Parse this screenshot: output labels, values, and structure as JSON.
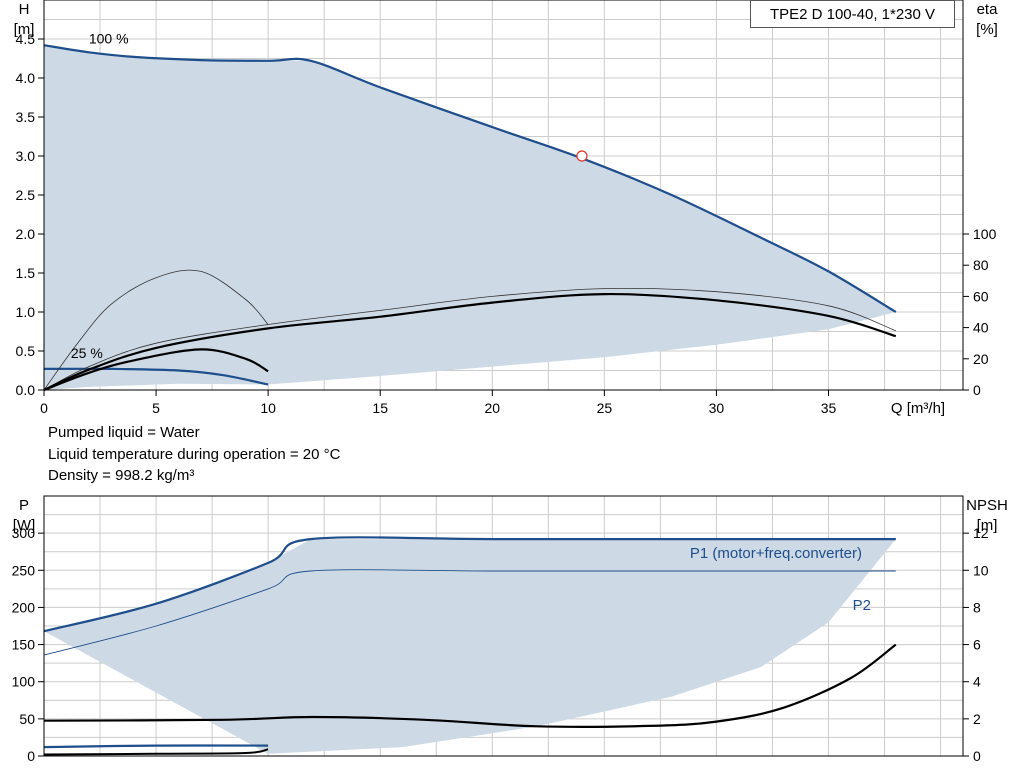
{
  "title": "TPE2 D 100-40, 1*230 V",
  "notes": [
    "Pumped liquid = Water",
    "Liquid temperature during operation = 20 °C",
    "Density = 998.2 kg/m³"
  ],
  "colors": {
    "curve_blue": "#1f4e8c",
    "area_fill": "#cdd9e5",
    "black": "#000000",
    "grid": "#cccccc",
    "duty_point": "#e8332a"
  },
  "chart_data": [
    {
      "type": "line",
      "name": "head-efficiency",
      "xlabel": "Q [m³/h]",
      "ylabel_left": [
        "H",
        "[m]"
      ],
      "ylabel_right": [
        "eta",
        "[%]"
      ],
      "xlim": [
        0,
        41
      ],
      "ylim_left": [
        0,
        5
      ],
      "ylim_right": [
        0,
        250
      ],
      "xticks": [
        0,
        5,
        10,
        15,
        20,
        25,
        30,
        35
      ],
      "yticks_left": [
        "0.0",
        "0.5",
        "1.0",
        "1.5",
        "2.0",
        "2.5",
        "3.0",
        "3.5",
        "4.0",
        "4.5"
      ],
      "yticks_right": [
        "0",
        "20",
        "40",
        "60",
        "80",
        "100"
      ],
      "grid": true,
      "curve_labels": [
        {
          "text": "100 %",
          "x": 2,
          "y": 4.44
        },
        {
          "text": "25 %",
          "x": 1.2,
          "y": 0.41
        }
      ],
      "series": [
        {
          "role": "H_max",
          "points": [
            [
              0,
              4.42
            ],
            [
              2,
              4.33
            ],
            [
              4,
              4.27
            ],
            [
              7,
              4.23
            ],
            [
              10,
              4.22
            ],
            [
              11.9,
              4.22
            ],
            [
              15,
              3.88
            ],
            [
              20,
              3.37
            ],
            [
              24,
              2.97
            ],
            [
              28,
              2.5
            ],
            [
              32,
              1.95
            ],
            [
              35,
              1.52
            ],
            [
              38,
              1.0
            ]
          ]
        },
        {
          "role": "H_min",
          "points": [
            [
              0,
              0.27
            ],
            [
              3,
              0.27
            ],
            [
              6,
              0.25
            ],
            [
              8,
              0.19
            ],
            [
              10,
              0.07
            ]
          ]
        },
        {
          "role": "H_lower_bound",
          "points": [
            [
              0,
              0
            ],
            [
              2,
              0.04
            ],
            [
              6,
              0.08
            ],
            [
              10,
              0.07
            ],
            [
              15,
              0.18
            ],
            [
              20,
              0.3
            ],
            [
              25,
              0.42
            ],
            [
              30,
              0.58
            ],
            [
              35,
              0.78
            ],
            [
              38,
              1.0
            ]
          ]
        },
        {
          "role": "eta_max",
          "axis": "right",
          "points": [
            [
              0,
              0
            ],
            [
              2,
              13
            ],
            [
              5,
              27
            ],
            [
              10,
              39.5
            ],
            [
              15,
              47
            ],
            [
              20,
              56
            ],
            [
              25,
              61.5
            ],
            [
              30,
              57.5
            ],
            [
              35,
              47.5
            ],
            [
              38,
              34.5
            ]
          ]
        },
        {
          "role": "eta_max_thin",
          "axis": "right",
          "points": [
            [
              0,
              0
            ],
            [
              2,
              15
            ],
            [
              5,
              30
            ],
            [
              10,
              42
            ],
            [
              15,
              51
            ],
            [
              20,
              60
            ],
            [
              25,
              65
            ],
            [
              30,
              63
            ],
            [
              35,
              54
            ],
            [
              38,
              38
            ]
          ]
        },
        {
          "role": "eta_min",
          "axis": "right",
          "points": [
            [
              0,
              0
            ],
            [
              2,
              11
            ],
            [
              4,
              19
            ],
            [
              7,
              26
            ],
            [
              9,
              20
            ],
            [
              10,
              12
            ]
          ]
        },
        {
          "role": "eta_min_thin",
          "axis": "right",
          "points": [
            [
              0,
              0
            ],
            [
              1.5,
              30
            ],
            [
              3,
              55
            ],
            [
              5,
              72
            ],
            [
              7,
              76
            ],
            [
              9,
              58
            ],
            [
              10,
              42
            ]
          ]
        }
      ],
      "duty_point": {
        "x": 24,
        "y": 3.0
      }
    },
    {
      "type": "line",
      "name": "power-npsh",
      "xlim": [
        0,
        41
      ],
      "ylim_left": [
        0,
        350
      ],
      "ylim_right": [
        0,
        14
      ],
      "ylabel_left": [
        "P",
        "[W]"
      ],
      "ylabel_right": [
        "NPSH",
        "[m]"
      ],
      "yticks_left": [
        "0",
        "50",
        "100",
        "150",
        "200",
        "250",
        "300"
      ],
      "yticks_right": [
        "0",
        "2",
        "4",
        "6",
        "8",
        "10",
        "12"
      ],
      "grid": true,
      "series": [
        {
          "name": "P1 (motor+freq.converter)",
          "role": "P1_max",
          "points": [
            [
              0,
              168
            ],
            [
              5,
              205
            ],
            [
              10,
              260
            ],
            [
              11.9,
              292
            ],
            [
              20,
              292
            ],
            [
              30,
              292
            ],
            [
              38,
              292
            ]
          ]
        },
        {
          "name": "P2",
          "role": "P2_max",
          "points": [
            [
              0,
              136
            ],
            [
              5,
              175
            ],
            [
              10,
              225
            ],
            [
              11.9,
              249
            ],
            [
              20,
              249
            ],
            [
              30,
              249
            ],
            [
              38,
              249
            ]
          ]
        },
        {
          "role": "P_lower_bound",
          "points": [
            [
              10,
              3
            ],
            [
              16,
              12
            ],
            [
              22,
              40
            ],
            [
              28,
              80
            ],
            [
              32,
              120
            ],
            [
              35,
              180
            ],
            [
              38,
              292
            ]
          ]
        },
        {
          "role": "P1_min",
          "points": [
            [
              0,
              12
            ],
            [
              5,
              14
            ],
            [
              10,
              14
            ]
          ]
        },
        {
          "role": "P2_min",
          "points": [
            [
              0,
              2
            ],
            [
              5,
              3
            ],
            [
              9,
              4
            ],
            [
              10,
              9
            ]
          ]
        },
        {
          "role": "NPSH",
          "axis": "right",
          "points": [
            [
              0,
              1.9
            ],
            [
              8,
              1.95
            ],
            [
              12,
              2.1
            ],
            [
              17,
              1.95
            ],
            [
              22,
              1.6
            ],
            [
              27,
              1.62
            ],
            [
              30,
              1.85
            ],
            [
              33,
              2.6
            ],
            [
              36,
              4.2
            ],
            [
              38,
              6.0
            ]
          ]
        }
      ]
    }
  ]
}
